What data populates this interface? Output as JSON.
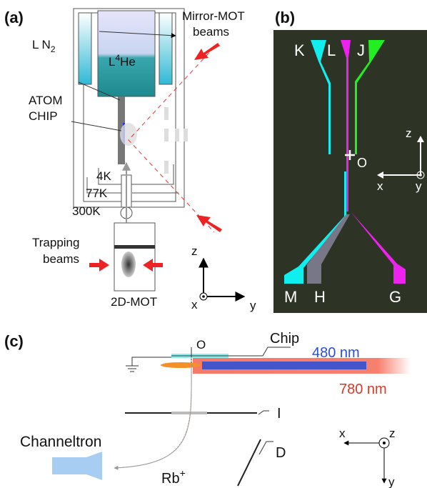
{
  "panel_a": {
    "label": "(a)",
    "ln2": {
      "text": "L N",
      "sub": "2"
    },
    "mirror_mot": [
      "Mirror-MOT",
      "beams"
    ],
    "l4he": {
      "pre": "L",
      "sup": "4",
      "post": "He"
    },
    "atom_chip": [
      "ATOM",
      "CHIP"
    ],
    "temps": [
      "4K",
      "77K",
      "300K"
    ],
    "trapping": [
      "Trapping",
      "beams"
    ],
    "mot2d": "2D-MOT",
    "axes": {
      "z": "z",
      "x": "x",
      "y": "y"
    }
  },
  "panel_b": {
    "label": "(b)",
    "pads": [
      "K",
      "L",
      "J",
      "M",
      "H",
      "G"
    ],
    "origin": "O",
    "axes": {
      "z": "z",
      "x": "x",
      "y": "y"
    }
  },
  "panel_c": {
    "label": "(c)",
    "origin": "O",
    "chip": "Chip",
    "blue": "480 nm",
    "red": "780 nm",
    "grid_label": "I",
    "deflector": "D",
    "detector": "Channeltron",
    "ion": {
      "pre": "Rb",
      "sup": "+"
    },
    "axes": {
      "x": "x",
      "z": "z",
      "y": "y"
    }
  }
}
